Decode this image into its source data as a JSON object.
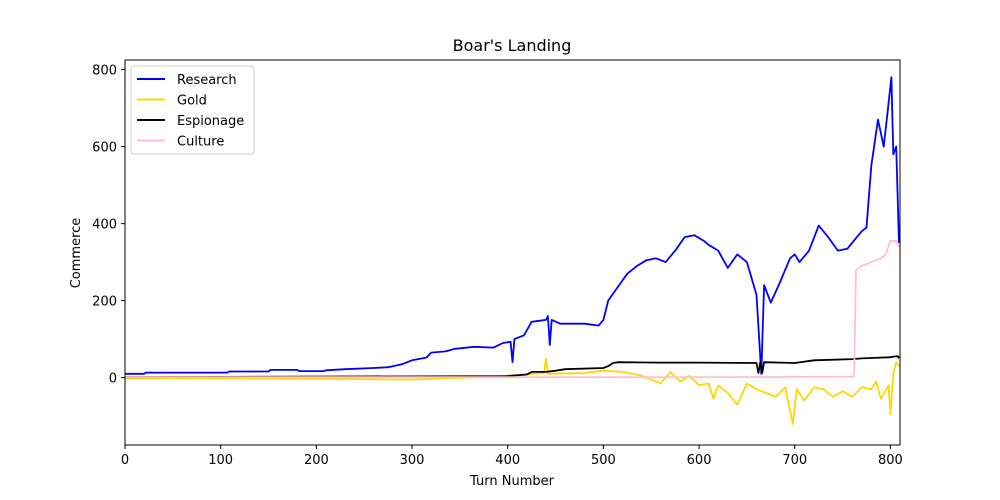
{
  "chart_data": {
    "type": "line",
    "title": "Boar's Landing",
    "xlabel": "Turn Number",
    "ylabel": "Commerce",
    "xlim": [
      0,
      810
    ],
    "ylim": [
      -175,
      825
    ],
    "xticks": [
      0,
      100,
      200,
      300,
      400,
      500,
      600,
      700,
      800
    ],
    "yticks": [
      0,
      200,
      400,
      600,
      800
    ],
    "grid": false,
    "legend_position": "top-left",
    "series": [
      {
        "name": "Research",
        "color": "#0000ff",
        "points": [
          [
            0,
            10
          ],
          [
            20,
            10
          ],
          [
            22,
            13
          ],
          [
            107,
            13
          ],
          [
            109,
            16
          ],
          [
            150,
            16
          ],
          [
            152,
            20
          ],
          [
            180,
            20
          ],
          [
            182,
            17
          ],
          [
            208,
            17
          ],
          [
            210,
            19
          ],
          [
            230,
            22
          ],
          [
            260,
            25
          ],
          [
            275,
            27
          ],
          [
            290,
            35
          ],
          [
            300,
            45
          ],
          [
            315,
            52
          ],
          [
            320,
            65
          ],
          [
            335,
            68
          ],
          [
            345,
            75
          ],
          [
            365,
            80
          ],
          [
            385,
            78
          ],
          [
            395,
            90
          ],
          [
            403,
            93
          ],
          [
            405,
            40
          ],
          [
            407,
            100
          ],
          [
            417,
            110
          ],
          [
            425,
            145
          ],
          [
            440,
            150
          ],
          [
            442,
            160
          ],
          [
            444,
            85
          ],
          [
            446,
            150
          ],
          [
            455,
            140
          ],
          [
            480,
            140
          ],
          [
            495,
            135
          ],
          [
            500,
            150
          ],
          [
            505,
            200
          ],
          [
            515,
            235
          ],
          [
            525,
            270
          ],
          [
            535,
            290
          ],
          [
            545,
            305
          ],
          [
            555,
            310
          ],
          [
            565,
            300
          ],
          [
            575,
            330
          ],
          [
            585,
            365
          ],
          [
            595,
            370
          ],
          [
            605,
            355
          ],
          [
            610,
            345
          ],
          [
            620,
            330
          ],
          [
            630,
            285
          ],
          [
            640,
            320
          ],
          [
            650,
            300
          ],
          [
            660,
            215
          ],
          [
            665,
            10
          ],
          [
            668,
            240
          ],
          [
            675,
            195
          ],
          [
            685,
            250
          ],
          [
            695,
            310
          ],
          [
            700,
            320
          ],
          [
            705,
            300
          ],
          [
            715,
            330
          ],
          [
            725,
            395
          ],
          [
            735,
            365
          ],
          [
            745,
            330
          ],
          [
            755,
            335
          ],
          [
            765,
            365
          ],
          [
            770,
            380
          ],
          [
            775,
            390
          ],
          [
            780,
            550
          ],
          [
            787,
            670
          ],
          [
            793,
            600
          ],
          [
            797,
            690
          ],
          [
            801,
            780
          ],
          [
            803,
            580
          ],
          [
            806,
            600
          ],
          [
            809,
            350
          ]
        ]
      },
      {
        "name": "Gold",
        "color": "#ffd700",
        "points": [
          [
            0,
            -2
          ],
          [
            100,
            -2
          ],
          [
            200,
            -3
          ],
          [
            300,
            -5
          ],
          [
            320,
            -3
          ],
          [
            360,
            0
          ],
          [
            400,
            5
          ],
          [
            420,
            8
          ],
          [
            438,
            12
          ],
          [
            440,
            50
          ],
          [
            442,
            10
          ],
          [
            480,
            12
          ],
          [
            500,
            18
          ],
          [
            520,
            15
          ],
          [
            540,
            5
          ],
          [
            560,
            -15
          ],
          [
            570,
            15
          ],
          [
            580,
            -10
          ],
          [
            590,
            5
          ],
          [
            600,
            -20
          ],
          [
            610,
            -15
          ],
          [
            615,
            -55
          ],
          [
            620,
            -20
          ],
          [
            630,
            -40
          ],
          [
            640,
            -70
          ],
          [
            650,
            -15
          ],
          [
            660,
            -30
          ],
          [
            670,
            -40
          ],
          [
            680,
            -50
          ],
          [
            690,
            -25
          ],
          [
            698,
            -120
          ],
          [
            702,
            -30
          ],
          [
            710,
            -60
          ],
          [
            720,
            -25
          ],
          [
            730,
            -30
          ],
          [
            740,
            -50
          ],
          [
            750,
            -35
          ],
          [
            760,
            -50
          ],
          [
            770,
            -25
          ],
          [
            780,
            -30
          ],
          [
            785,
            -10
          ],
          [
            790,
            -55
          ],
          [
            798,
            -20
          ],
          [
            800,
            -95
          ],
          [
            803,
            10
          ],
          [
            806,
            40
          ],
          [
            809,
            30
          ]
        ]
      },
      {
        "name": "Espionage",
        "color": "#000000",
        "points": [
          [
            0,
            1
          ],
          [
            400,
            4
          ],
          [
            420,
            8
          ],
          [
            425,
            15
          ],
          [
            440,
            15
          ],
          [
            450,
            18
          ],
          [
            460,
            22
          ],
          [
            500,
            25
          ],
          [
            505,
            30
          ],
          [
            510,
            38
          ],
          [
            515,
            40
          ],
          [
            560,
            39
          ],
          [
            600,
            39
          ],
          [
            660,
            38
          ],
          [
            662,
            12
          ],
          [
            664,
            40
          ],
          [
            666,
            12
          ],
          [
            668,
            40
          ],
          [
            700,
            38
          ],
          [
            720,
            45
          ],
          [
            760,
            48
          ],
          [
            770,
            50
          ],
          [
            800,
            53
          ],
          [
            805,
            55
          ],
          [
            808,
            55
          ],
          [
            809,
            50
          ]
        ]
      },
      {
        "name": "Culture",
        "color": "#ffc0cb",
        "points": [
          [
            0,
            1
          ],
          [
            600,
            1
          ],
          [
            700,
            2
          ],
          [
            762,
            3
          ],
          [
            764,
            280
          ],
          [
            770,
            290
          ],
          [
            780,
            300
          ],
          [
            790,
            310
          ],
          [
            795,
            320
          ],
          [
            800,
            355
          ],
          [
            806,
            355
          ],
          [
            809,
            340
          ]
        ]
      }
    ]
  }
}
